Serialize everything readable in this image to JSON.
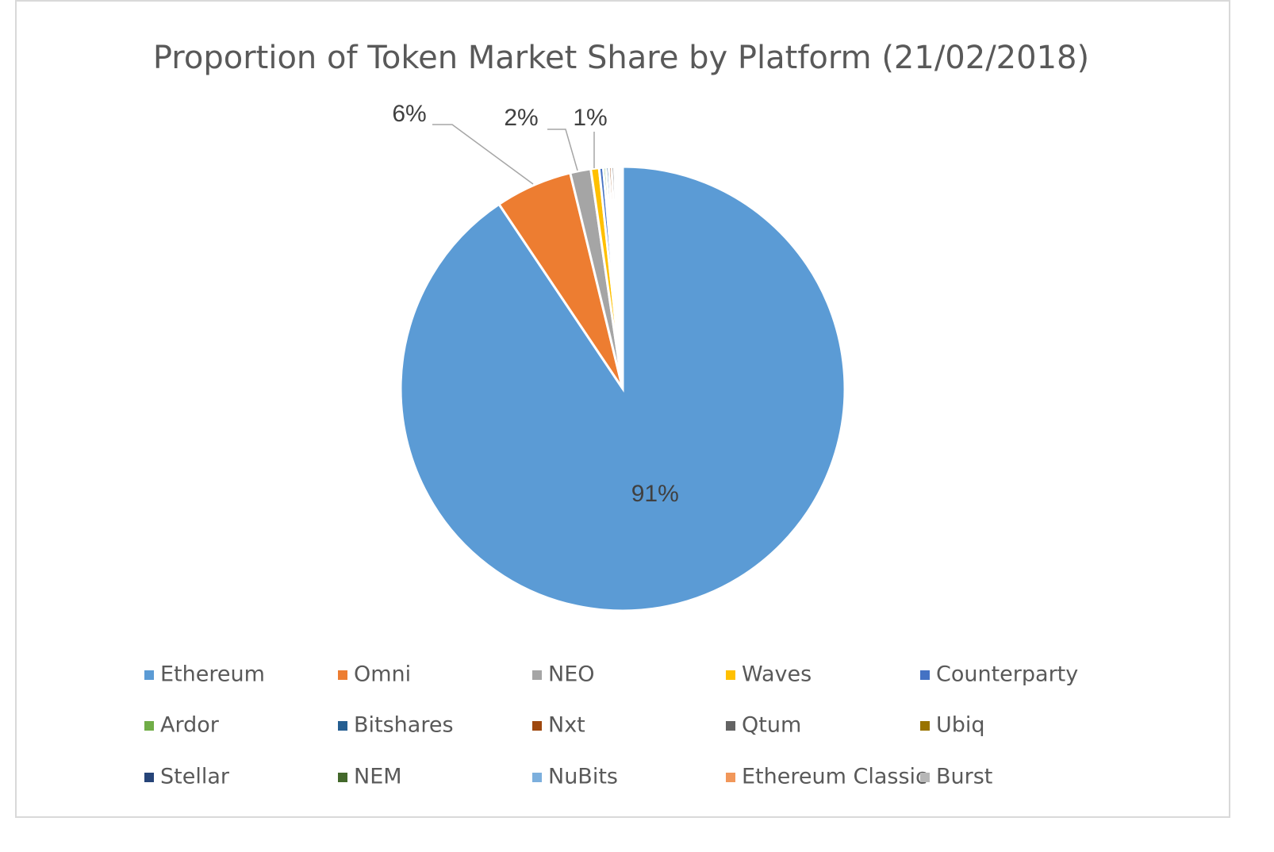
{
  "chart_data": {
    "type": "pie",
    "title": "Proportion of Token Market Share by Platform (21/02/2018)",
    "categories": [
      "Ethereum",
      "Omni",
      "NEO",
      "Waves",
      "Counterparty",
      "Ardor",
      "Bitshares",
      "Nxt",
      "Qtum",
      "Ubiq",
      "Stellar",
      "NEM",
      "NuBits",
      "Ethereum Classic",
      "Burst"
    ],
    "values": [
      90.6,
      5.6,
      1.5,
      0.6,
      0.3,
      0.2,
      0.2,
      0.2,
      0.2,
      0.15,
      0.15,
      0.1,
      0.05,
      0.1,
      0.05
    ],
    "value_labels": [
      "91%",
      "6%",
      "2%",
      "1%",
      null,
      null,
      null,
      null,
      null,
      null,
      null,
      null,
      null,
      null,
      null
    ],
    "colors": [
      "#5b9bd5",
      "#ed7d31",
      "#a5a5a5",
      "#ffc000",
      "#4472c4",
      "#70ad47",
      "#255e91",
      "#9e480e",
      "#636363",
      "#997300",
      "#264478",
      "#43682b",
      "#7cafdd",
      "#f1975a",
      "#b7b7b7"
    ],
    "legend": "bottom"
  }
}
